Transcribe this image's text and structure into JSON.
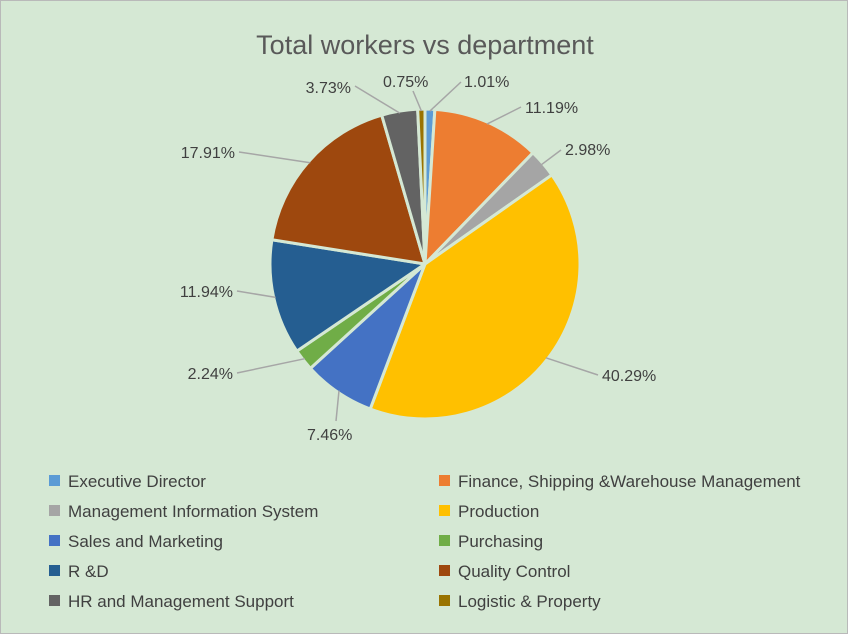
{
  "chart_data": {
    "type": "pie",
    "title": "Total workers vs department",
    "categories": [
      "Executive Director",
      "Finance, Shipping &Warehouse Management",
      "Management Information System",
      "Production",
      "Sales and Marketing",
      "Purchasing",
      "R &D",
      "Quality Control",
      "HR and Management Support",
      "Logistic & Property"
    ],
    "values": [
      1.01,
      11.19,
      2.98,
      40.29,
      7.46,
      2.24,
      11.94,
      17.91,
      3.73,
      0.75
    ],
    "data_labels": [
      "1.01%",
      "11.19%",
      "2.98%",
      "40.29%",
      "7.46%",
      "2.24%",
      "11.94%",
      "17.91%",
      "3.73%",
      "0.75%"
    ],
    "colors": [
      "#5b9bd5",
      "#ed7d31",
      "#a5a5a5",
      "#ffc000",
      "#4472c4",
      "#70ad47",
      "#255e91",
      "#9e480e",
      "#636363",
      "#997300"
    ],
    "legend_position": "bottom",
    "start_angle": "top, clockwise"
  },
  "style": {
    "background": "#d5e8d4",
    "slice_border": "#d5e8d4",
    "label_color": "#404040",
    "leader_color": "#a6a6a6"
  }
}
